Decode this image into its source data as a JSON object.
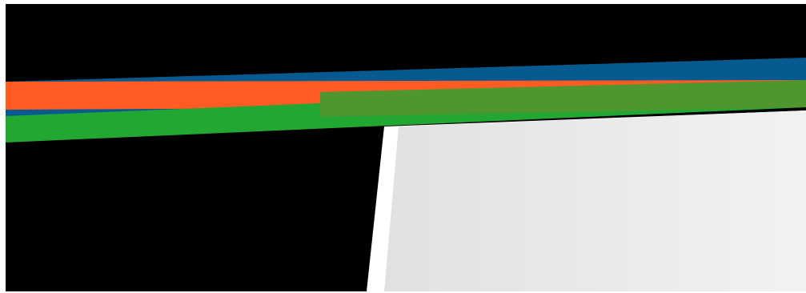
{
  "scene": {
    "colors": {
      "page_background": "#ffffff",
      "canvas_background": "#000000",
      "stripe_blue": "#075a8f",
      "stripe_orange": "#ff5b22",
      "stripe_green": "#22a832",
      "stripe_green_overlap": "#4f962f",
      "panel_white": "#ffffff",
      "panel_gradient_start": "#e1e1e1",
      "panel_gradient_end": "#f2f2f2"
    },
    "elements": [
      {
        "name": "black-background",
        "kind": "canvas-background"
      },
      {
        "name": "white-panel",
        "kind": "perspective-panel"
      },
      {
        "name": "blue-stripe",
        "kind": "diagonal-stripe"
      },
      {
        "name": "orange-stripe",
        "kind": "diagonal-stripe"
      },
      {
        "name": "green-stripe",
        "kind": "diagonal-stripe"
      }
    ]
  }
}
